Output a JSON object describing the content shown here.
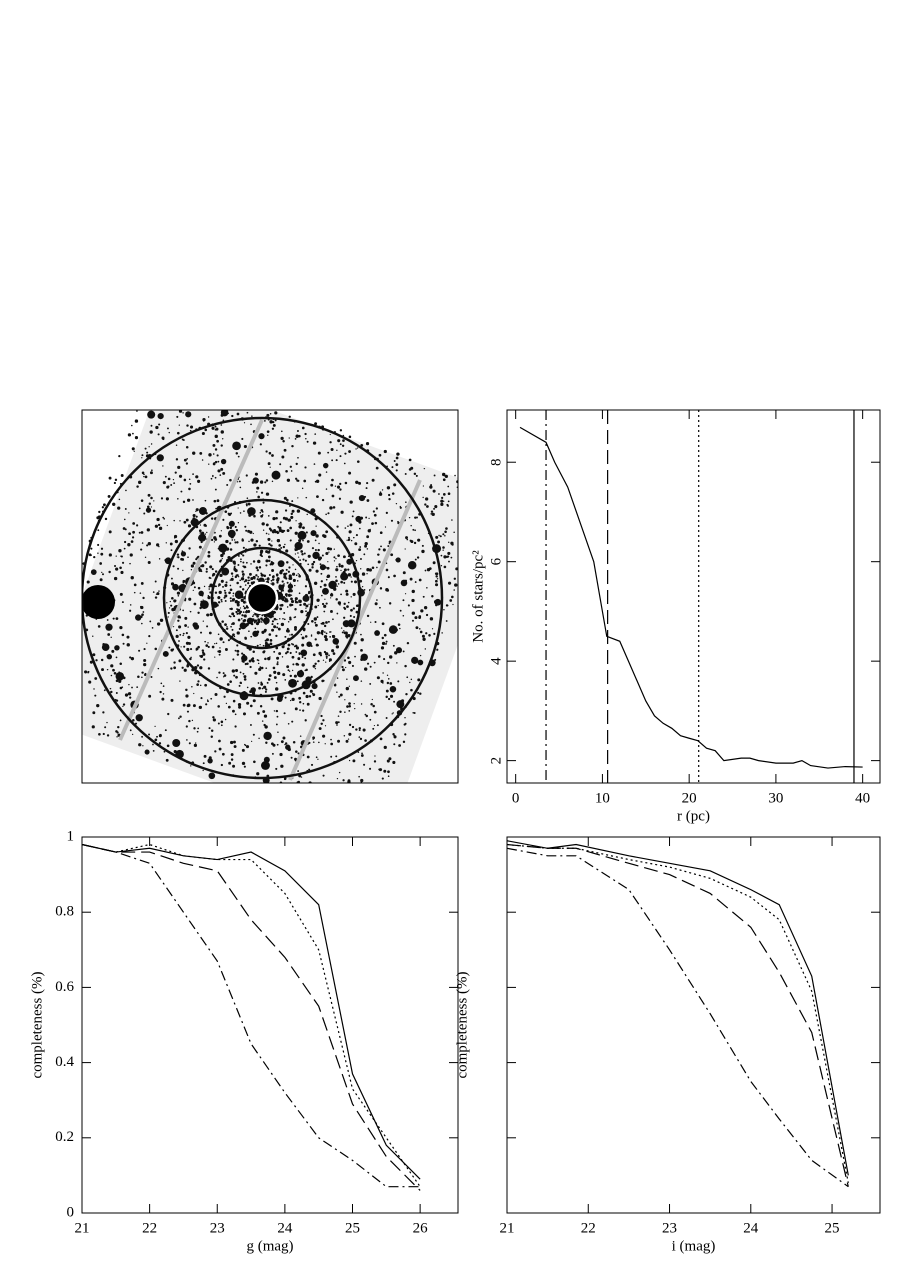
{
  "chart_data": [
    {
      "type": "line",
      "xlabel": "r (pc)",
      "ylabel": "No. of stars/pc²",
      "xlim": [
        -1,
        42
      ],
      "xticks": [
        0,
        10,
        20,
        30,
        40
      ],
      "ylim": [
        1.55,
        9.05
      ],
      "yticks": [
        2,
        4,
        6,
        8
      ],
      "ytick_rotate": true,
      "x": [
        0.5,
        3.5,
        4.5,
        6,
        7,
        8,
        9,
        10,
        10.5,
        12,
        13,
        14,
        15,
        16,
        17,
        18,
        19,
        20,
        21,
        22,
        23,
        24,
        26,
        27,
        28,
        30,
        32,
        33,
        34,
        36,
        38,
        40
      ],
      "series": [
        {
          "style": "solid",
          "color": "#000000",
          "values": [
            8.7,
            8.4,
            8.0,
            7.5,
            7.0,
            6.5,
            6.0,
            5.0,
            4.5,
            4.4,
            4.0,
            3.6,
            3.2,
            2.9,
            2.75,
            2.65,
            2.5,
            2.45,
            2.4,
            2.25,
            2.2,
            2.0,
            2.05,
            2.05,
            2.0,
            1.95,
            1.95,
            2.0,
            1.9,
            1.85,
            1.88,
            1.87
          ]
        }
      ],
      "vlines": [
        {
          "value": 3.5,
          "style": "dashdot"
        },
        {
          "value": 10.6,
          "style": "dashed"
        },
        {
          "value": 21.1,
          "style": "dotted"
        },
        {
          "value": 39.0,
          "style": "solid"
        }
      ]
    },
    {
      "type": "line",
      "xlabel": "g (mag)",
      "ylabel": "completeness (%)",
      "xlim": [
        21,
        26.56
      ],
      "xticks": [
        21,
        22,
        23,
        24,
        25,
        26
      ],
      "ylim": [
        0,
        1
      ],
      "yticks": [
        0,
        0.2,
        0.4,
        0.6,
        0.8,
        1
      ],
      "ytick_labels": true,
      "x": [
        21,
        21.5,
        22,
        22.5,
        23,
        23.5,
        24,
        24.5,
        25,
        25.5,
        26
      ],
      "series": [
        {
          "style": "solid",
          "color": "#000000",
          "values": [
            0.98,
            0.96,
            0.97,
            0.95,
            0.94,
            0.96,
            0.91,
            0.82,
            0.37,
            0.18,
            0.09
          ]
        },
        {
          "style": "dotted",
          "color": "#000000",
          "values": [
            0.98,
            0.96,
            0.98,
            0.95,
            0.94,
            0.94,
            0.85,
            0.7,
            0.33,
            0.2,
            0.07
          ]
        },
        {
          "style": "dashed",
          "color": "#000000",
          "values": [
            0.98,
            0.96,
            0.96,
            0.93,
            0.91,
            0.78,
            0.68,
            0.55,
            0.29,
            0.15,
            0.06
          ]
        },
        {
          "style": "dashdot",
          "color": "#000000",
          "values": [
            0.98,
            0.96,
            0.93,
            0.8,
            0.67,
            0.45,
            0.32,
            0.2,
            0.14,
            0.07,
            0.07
          ]
        }
      ]
    },
    {
      "type": "line",
      "xlabel": "i (mag)",
      "ylabel": "completeness (%)",
      "xlim": [
        21,
        25.59
      ],
      "xticks": [
        21,
        22,
        23,
        24,
        25
      ],
      "ylim": [
        0,
        1
      ],
      "yticks": [
        0,
        0.2,
        0.4,
        0.6,
        0.8,
        1
      ],
      "ytick_labels": false,
      "x": [
        21,
        21.5,
        21.85,
        22.5,
        23,
        23.5,
        24,
        24.35,
        24.75,
        25.2
      ],
      "series": [
        {
          "style": "solid",
          "color": "#000000",
          "values": [
            0.99,
            0.97,
            0.98,
            0.95,
            0.93,
            0.91,
            0.86,
            0.82,
            0.63,
            0.1
          ]
        },
        {
          "style": "dotted",
          "color": "#000000",
          "values": [
            0.98,
            0.97,
            0.97,
            0.94,
            0.92,
            0.89,
            0.84,
            0.78,
            0.59,
            0.08
          ]
        },
        {
          "style": "dashed",
          "color": "#000000",
          "values": [
            0.98,
            0.97,
            0.97,
            0.93,
            0.9,
            0.85,
            0.76,
            0.64,
            0.48,
            0.07
          ]
        },
        {
          "style": "dashdot",
          "color": "#000000",
          "values": [
            0.97,
            0.95,
            0.95,
            0.86,
            0.7,
            0.53,
            0.35,
            0.25,
            0.14,
            0.07
          ]
        }
      ]
    }
  ]
}
